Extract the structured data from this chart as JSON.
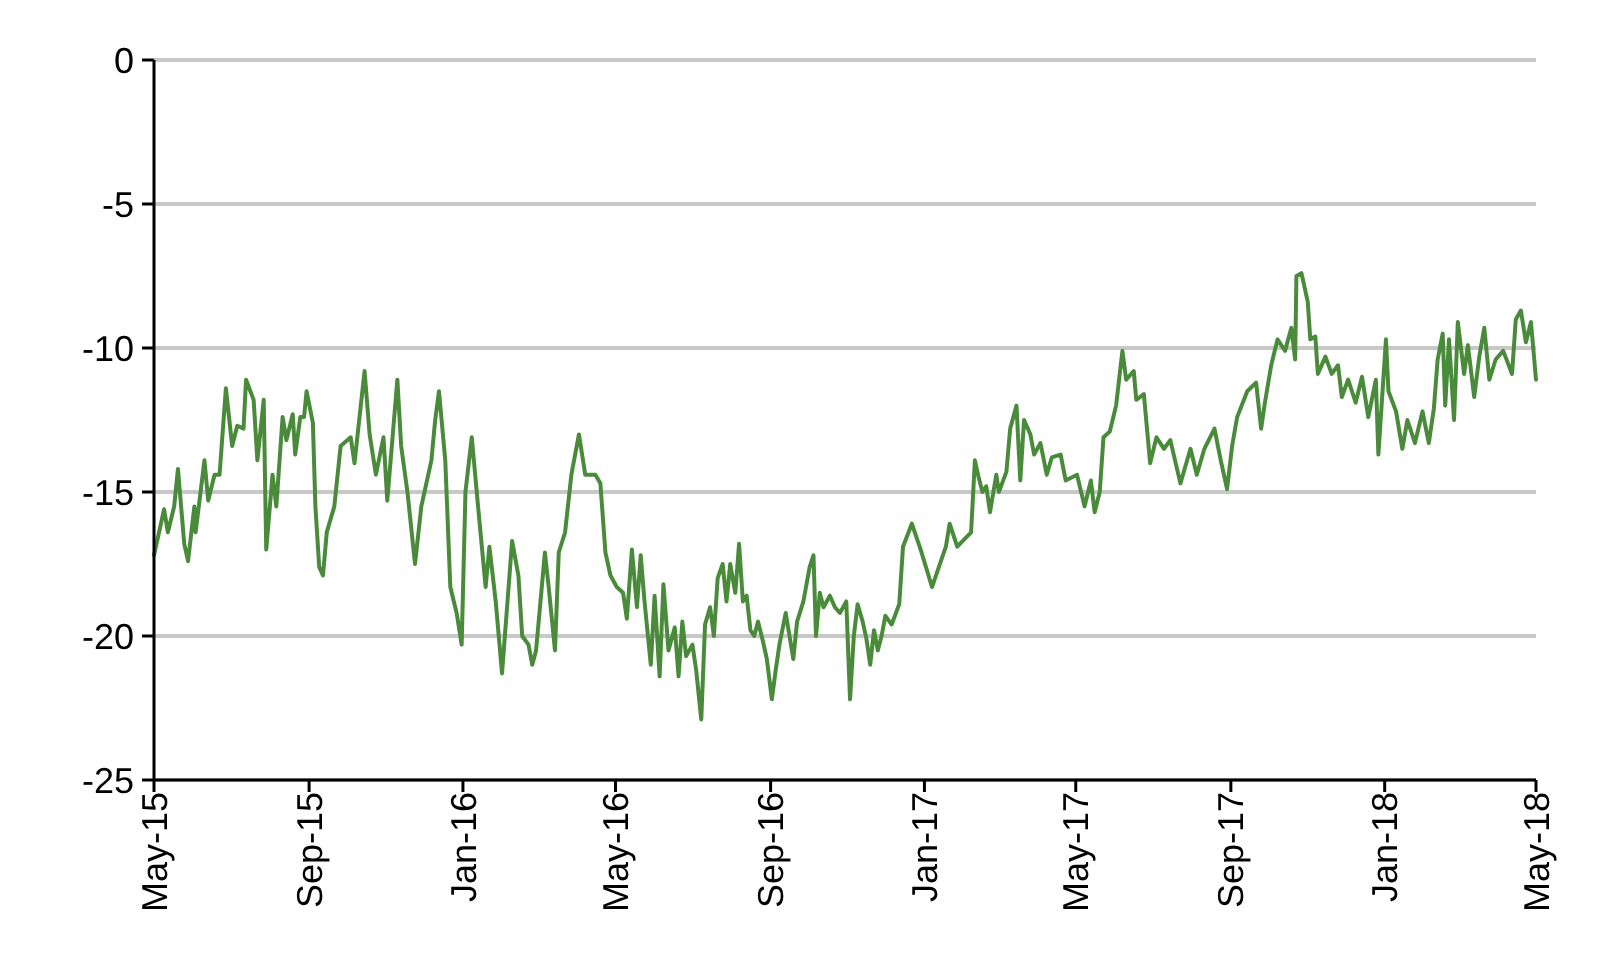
{
  "chart_data": {
    "type": "line",
    "grid": "y",
    "marker": "none",
    "line_style": "solid",
    "xlim": [
      "2015-05-01",
      "2018-05-01"
    ],
    "xticks": [
      {
        "value": "2015-05-01",
        "label": "May-15"
      },
      {
        "value": "2015-09-01",
        "label": "Sep-15"
      },
      {
        "value": "2016-01-01",
        "label": "Jan-16"
      },
      {
        "value": "2016-05-01",
        "label": "May-16"
      },
      {
        "value": "2016-09-01",
        "label": "Sep-16"
      },
      {
        "value": "2017-01-01",
        "label": "Jan-17"
      },
      {
        "value": "2017-05-01",
        "label": "May-17"
      },
      {
        "value": "2017-09-01",
        "label": "Sep-17"
      },
      {
        "value": "2018-01-01",
        "label": "Jan-18"
      },
      {
        "value": "2018-05-01",
        "label": "May-18"
      }
    ],
    "ylim": [
      -25,
      0
    ],
    "yticks": [
      -25,
      -20,
      -15,
      -10,
      -5,
      0
    ],
    "x": [
      "2015-05-01",
      "2015-05-09",
      "2015-05-12",
      "2015-05-17",
      "2015-05-20",
      "2015-05-25",
      "2015-05-28",
      "2015-06-02",
      "2015-06-03",
      "2015-06-10",
      "2015-06-13",
      "2015-06-18",
      "2015-06-22",
      "2015-06-27",
      "2015-07-02",
      "2015-07-06",
      "2015-07-11",
      "2015-07-13",
      "2015-07-19",
      "2015-07-22",
      "2015-07-27",
      "2015-07-29",
      "2015-08-03",
      "2015-08-06",
      "2015-08-11",
      "2015-08-14",
      "2015-08-19",
      "2015-08-21",
      "2015-08-25",
      "2015-08-28",
      "2015-08-30",
      "2015-09-04",
      "2015-09-06",
      "2015-09-09",
      "2015-09-12",
      "2015-09-15",
      "2015-09-21",
      "2015-09-26",
      "2015-10-04",
      "2015-10-07",
      "2015-10-15",
      "2015-10-19",
      "2015-10-24",
      "2015-10-30",
      "2015-11-02",
      "2015-11-10",
      "2015-11-13",
      "2015-11-18",
      "2015-11-24",
      "2015-11-29",
      "2015-12-07",
      "2015-12-10",
      "2015-12-13",
      "2015-12-18",
      "2015-12-22",
      "2015-12-27",
      "2015-12-31",
      "2016-01-03",
      "2016-01-08",
      "2016-01-13",
      "2016-01-19",
      "2016-01-22",
      "2016-01-27",
      "2016-02-01",
      "2016-02-09",
      "2016-02-14",
      "2016-02-17",
      "2016-02-22",
      "2016-02-25",
      "2016-02-28",
      "2016-03-06",
      "2016-03-09",
      "2016-03-14",
      "2016-03-17",
      "2016-03-22",
      "2016-03-27",
      "2016-04-02",
      "2016-04-07",
      "2016-04-15",
      "2016-04-19",
      "2016-04-23",
      "2016-04-27",
      "2016-05-02",
      "2016-05-07",
      "2016-05-10",
      "2016-05-14",
      "2016-05-18",
      "2016-05-21",
      "2016-05-24",
      "2016-05-29",
      "2016-06-01",
      "2016-06-05",
      "2016-06-08",
      "2016-06-12",
      "2016-06-17",
      "2016-06-20",
      "2016-06-23",
      "2016-06-26",
      "2016-07-01",
      "2016-07-04",
      "2016-07-08",
      "2016-07-11",
      "2016-07-15",
      "2016-07-18",
      "2016-07-21",
      "2016-07-25",
      "2016-07-28",
      "2016-07-31",
      "2016-08-04",
      "2016-08-07",
      "2016-08-10",
      "2016-08-13",
      "2016-08-16",
      "2016-08-19",
      "2016-08-22",
      "2016-08-26",
      "2016-08-29",
      "2016-09-02",
      "2016-09-05",
      "2016-09-08",
      "2016-09-13",
      "2016-09-16",
      "2016-09-19",
      "2016-09-22",
      "2016-09-27",
      "2016-10-02",
      "2016-10-05",
      "2016-10-07",
      "2016-10-10",
      "2016-10-13",
      "2016-10-18",
      "2016-10-22",
      "2016-10-26",
      "2016-10-31",
      "2016-11-03",
      "2016-11-06",
      "2016-11-09",
      "2016-11-13",
      "2016-11-16",
      "2016-11-19",
      "2016-11-22",
      "2016-11-25",
      "2016-11-28",
      "2016-12-01",
      "2016-12-06",
      "2016-12-12",
      "2016-12-15",
      "2016-12-22",
      "2016-12-29",
      "2017-01-07",
      "2017-01-18",
      "2017-01-21",
      "2017-01-27",
      "2017-02-07",
      "2017-02-10",
      "2017-02-13",
      "2017-02-16",
      "2017-02-19",
      "2017-02-22",
      "2017-02-27",
      "2017-03-01",
      "2017-03-07",
      "2017-03-10",
      "2017-03-15",
      "2017-03-18",
      "2017-03-21",
      "2017-03-26",
      "2017-03-29",
      "2017-04-03",
      "2017-04-08",
      "2017-04-12",
      "2017-04-19",
      "2017-04-23",
      "2017-05-02",
      "2017-05-08",
      "2017-05-13",
      "2017-05-16",
      "2017-05-20",
      "2017-05-23",
      "2017-05-28",
      "2017-06-02",
      "2017-06-07",
      "2017-06-10",
      "2017-06-16",
      "2017-06-18",
      "2017-06-24",
      "2017-06-29",
      "2017-07-04",
      "2017-07-10",
      "2017-07-15",
      "2017-07-23",
      "2017-07-31",
      "2017-08-05",
      "2017-08-11",
      "2017-08-19",
      "2017-08-24",
      "2017-08-29",
      "2017-09-02",
      "2017-09-06",
      "2017-09-14",
      "2017-09-21",
      "2017-09-25",
      "2017-09-28",
      "2017-10-03",
      "2017-10-08",
      "2017-10-14",
      "2017-10-19",
      "2017-10-22",
      "2017-10-23",
      "2017-10-27",
      "2017-11-01",
      "2017-11-03",
      "2017-11-07",
      "2017-11-09",
      "2017-11-15",
      "2017-11-20",
      "2017-11-25",
      "2017-11-28",
      "2017-12-03",
      "2017-12-09",
      "2017-12-14",
      "2017-12-19",
      "2017-12-25",
      "2017-12-27",
      "2018-01-02",
      "2018-01-04",
      "2018-01-10",
      "2018-01-15",
      "2018-01-19",
      "2018-01-25",
      "2018-01-31",
      "2018-02-05",
      "2018-02-09",
      "2018-02-12",
      "2018-02-16",
      "2018-02-18",
      "2018-02-21",
      "2018-02-25",
      "2018-02-28",
      "2018-03-05",
      "2018-03-08",
      "2018-03-13",
      "2018-03-17",
      "2018-03-21",
      "2018-03-25",
      "2018-03-30",
      "2018-04-05",
      "2018-04-12",
      "2018-04-15",
      "2018-04-19",
      "2018-04-23",
      "2018-04-27",
      "2018-05-01"
    ],
    "series": [
      {
        "color": "#4a8b3b",
        "values": [
          -17.2,
          -15.6,
          -16.4,
          -15.5,
          -14.2,
          -16.8,
          -17.4,
          -15.5,
          -16.4,
          -13.9,
          -15.3,
          -14.4,
          -14.4,
          -11.4,
          -13.4,
          -12.7,
          -12.8,
          -11.1,
          -11.8,
          -13.9,
          -11.8,
          -17.0,
          -14.4,
          -15.5,
          -12.4,
          -13.2,
          -12.3,
          -13.7,
          -12.4,
          -12.4,
          -11.5,
          -12.6,
          -15.5,
          -17.6,
          -17.9,
          -16.4,
          -15.5,
          -13.4,
          -13.1,
          -14.0,
          -10.8,
          -13.0,
          -14.4,
          -13.1,
          -15.3,
          -11.1,
          -13.4,
          -15.0,
          -17.5,
          -15.5,
          -13.9,
          -12.5,
          -11.5,
          -13.9,
          -18.3,
          -19.2,
          -20.3,
          -15.0,
          -13.1,
          -15.5,
          -18.3,
          -16.9,
          -18.8,
          -21.3,
          -16.7,
          -17.9,
          -20.0,
          -20.3,
          -21.0,
          -20.5,
          -17.1,
          -18.3,
          -20.5,
          -17.1,
          -16.4,
          -14.4,
          -13.0,
          -14.4,
          -14.4,
          -14.7,
          -17.1,
          -17.9,
          -18.3,
          -18.5,
          -19.4,
          -17.0,
          -19.0,
          -17.2,
          -18.8,
          -21.0,
          -18.6,
          -21.4,
          -18.2,
          -20.5,
          -19.7,
          -21.4,
          -19.5,
          -20.7,
          -20.3,
          -21.2,
          -22.9,
          -19.6,
          -19.0,
          -20.0,
          -18.0,
          -17.5,
          -18.8,
          -17.5,
          -18.5,
          -16.8,
          -18.8,
          -18.6,
          -19.8,
          -20.0,
          -19.5,
          -20.2,
          -20.8,
          -22.2,
          -21.2,
          -20.3,
          -19.2,
          -20.0,
          -20.8,
          -19.5,
          -18.8,
          -17.6,
          -17.2,
          -20.0,
          -18.5,
          -19.0,
          -18.6,
          -19.0,
          -19.2,
          -18.8,
          -22.2,
          -20.0,
          -18.9,
          -19.5,
          -20.1,
          -21.0,
          -19.8,
          -20.5,
          -20.0,
          -19.3,
          -19.6,
          -18.9,
          -16.9,
          -16.1,
          -17.0,
          -18.3,
          -16.9,
          -16.1,
          -16.9,
          -16.4,
          -13.9,
          -14.5,
          -15.0,
          -14.8,
          -15.7,
          -14.4,
          -15.0,
          -14.3,
          -12.8,
          -12.0,
          -14.6,
          -12.5,
          -13.0,
          -13.7,
          -13.3,
          -14.4,
          -13.8,
          -13.7,
          -14.6,
          -14.4,
          -15.5,
          -14.6,
          -15.7,
          -15.0,
          -13.1,
          -12.9,
          -12.0,
          -10.1,
          -11.1,
          -10.8,
          -11.8,
          -11.6,
          -14.0,
          -13.1,
          -13.5,
          -13.2,
          -14.7,
          -13.5,
          -14.4,
          -13.5,
          -12.8,
          -13.9,
          -14.9,
          -13.4,
          -12.4,
          -11.5,
          -11.2,
          -12.8,
          -11.9,
          -10.6,
          -9.7,
          -10.1,
          -9.3,
          -10.4,
          -7.5,
          -7.4,
          -8.4,
          -9.7,
          -9.6,
          -10.9,
          -10.3,
          -10.9,
          -10.6,
          -11.7,
          -11.1,
          -11.9,
          -11.0,
          -12.4,
          -11.1,
          -13.7,
          -9.7,
          -11.5,
          -12.2,
          -13.5,
          -12.5,
          -13.3,
          -12.2,
          -13.3,
          -12.1,
          -10.4,
          -9.5,
          -12.0,
          -9.7,
          -12.5,
          -9.1,
          -10.9,
          -9.9,
          -11.7,
          -10.3,
          -9.3,
          -11.1,
          -10.4,
          -10.1,
          -10.9,
          -9.0,
          -8.7,
          -9.8,
          -9.1,
          -11.1
        ]
      }
    ]
  }
}
